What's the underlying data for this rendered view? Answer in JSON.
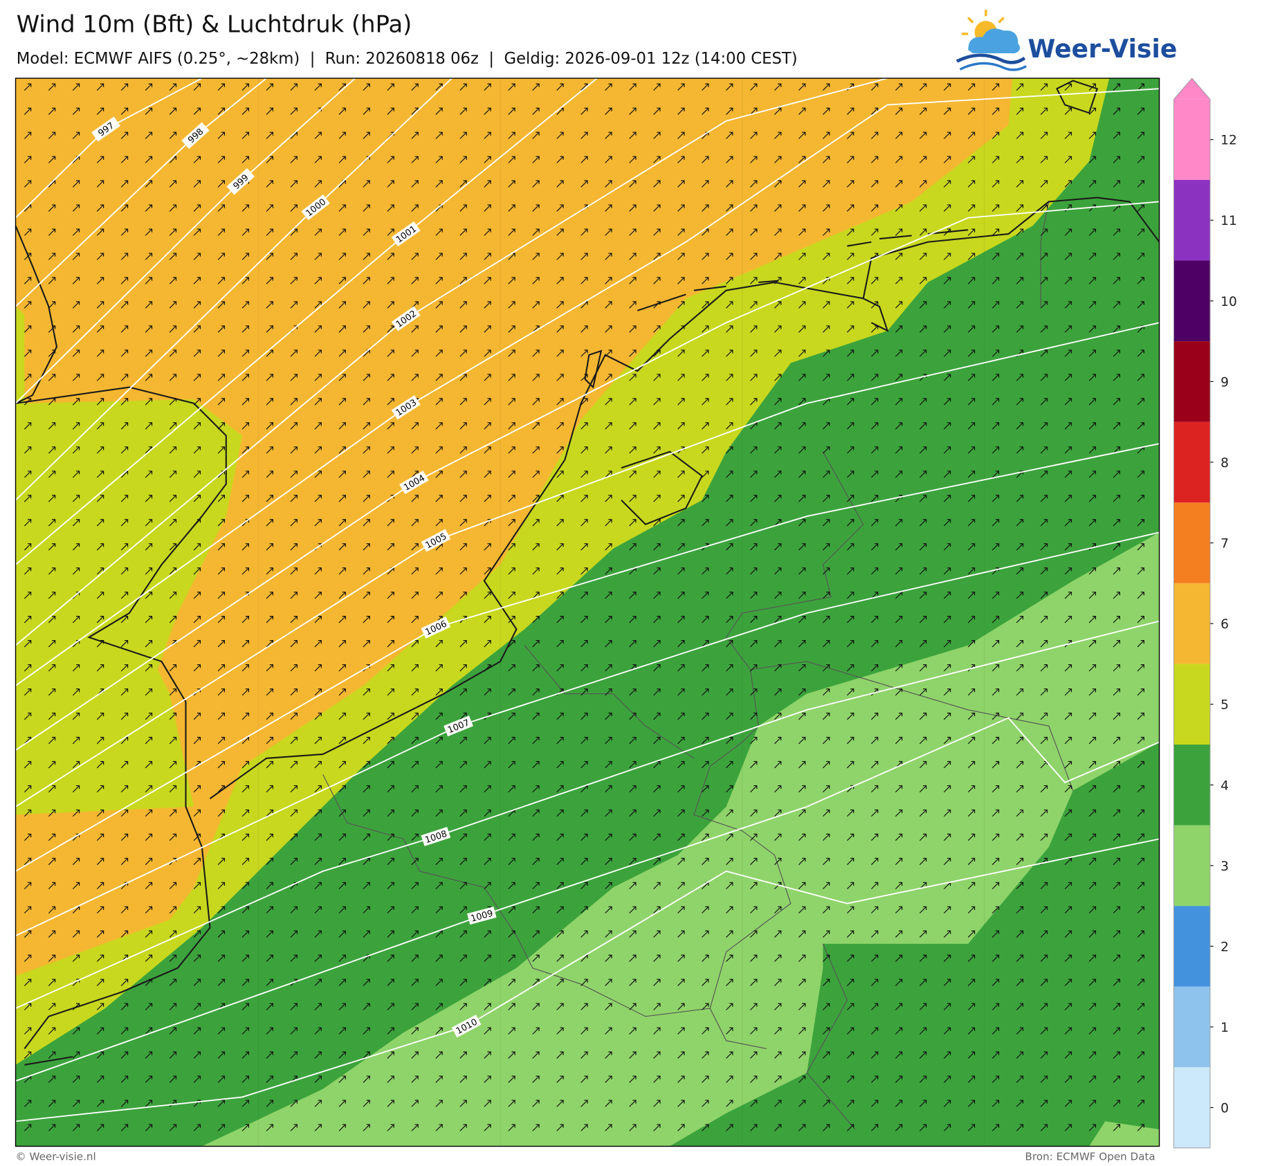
{
  "header": {
    "title": "Wind 10m (Bft) & Luchtdruk (hPa)",
    "subtitle": "Model: ECMWF AIFS (0.25°, ~28km)  |  Run: 20260818 06z  |  Geldig: 2026-09-01 12z (14:00 CEST)",
    "logo": "Weer-Visie"
  },
  "map": {
    "isobar_labels": [
      997,
      998,
      999,
      1000,
      1001,
      1002,
      1003,
      1004,
      1005,
      1006,
      1007,
      1008,
      1009,
      1010
    ]
  },
  "legend": {
    "levels": [
      {
        "value": 0,
        "color": "#cce8fb"
      },
      {
        "value": 1,
        "color": "#8ec3ee"
      },
      {
        "value": 2,
        "color": "#4292dd"
      },
      {
        "value": 3,
        "color": "#8fd46a"
      },
      {
        "value": 4,
        "color": "#3ca33c"
      },
      {
        "value": 5,
        "color": "#c8d81e"
      },
      {
        "value": 6,
        "color": "#f5b731"
      },
      {
        "value": 7,
        "color": "#f47f20"
      },
      {
        "value": 8,
        "color": "#dd2222"
      },
      {
        "value": 9,
        "color": "#9a0019"
      },
      {
        "value": 10,
        "color": "#4e0064"
      },
      {
        "value": 11,
        "color": "#8b33c0"
      },
      {
        "value": 12,
        "color": "#ff88c8"
      }
    ]
  },
  "footer": {
    "left": "© Weer-visie.nl",
    "right": "Bron: ECMWF Open Data"
  }
}
